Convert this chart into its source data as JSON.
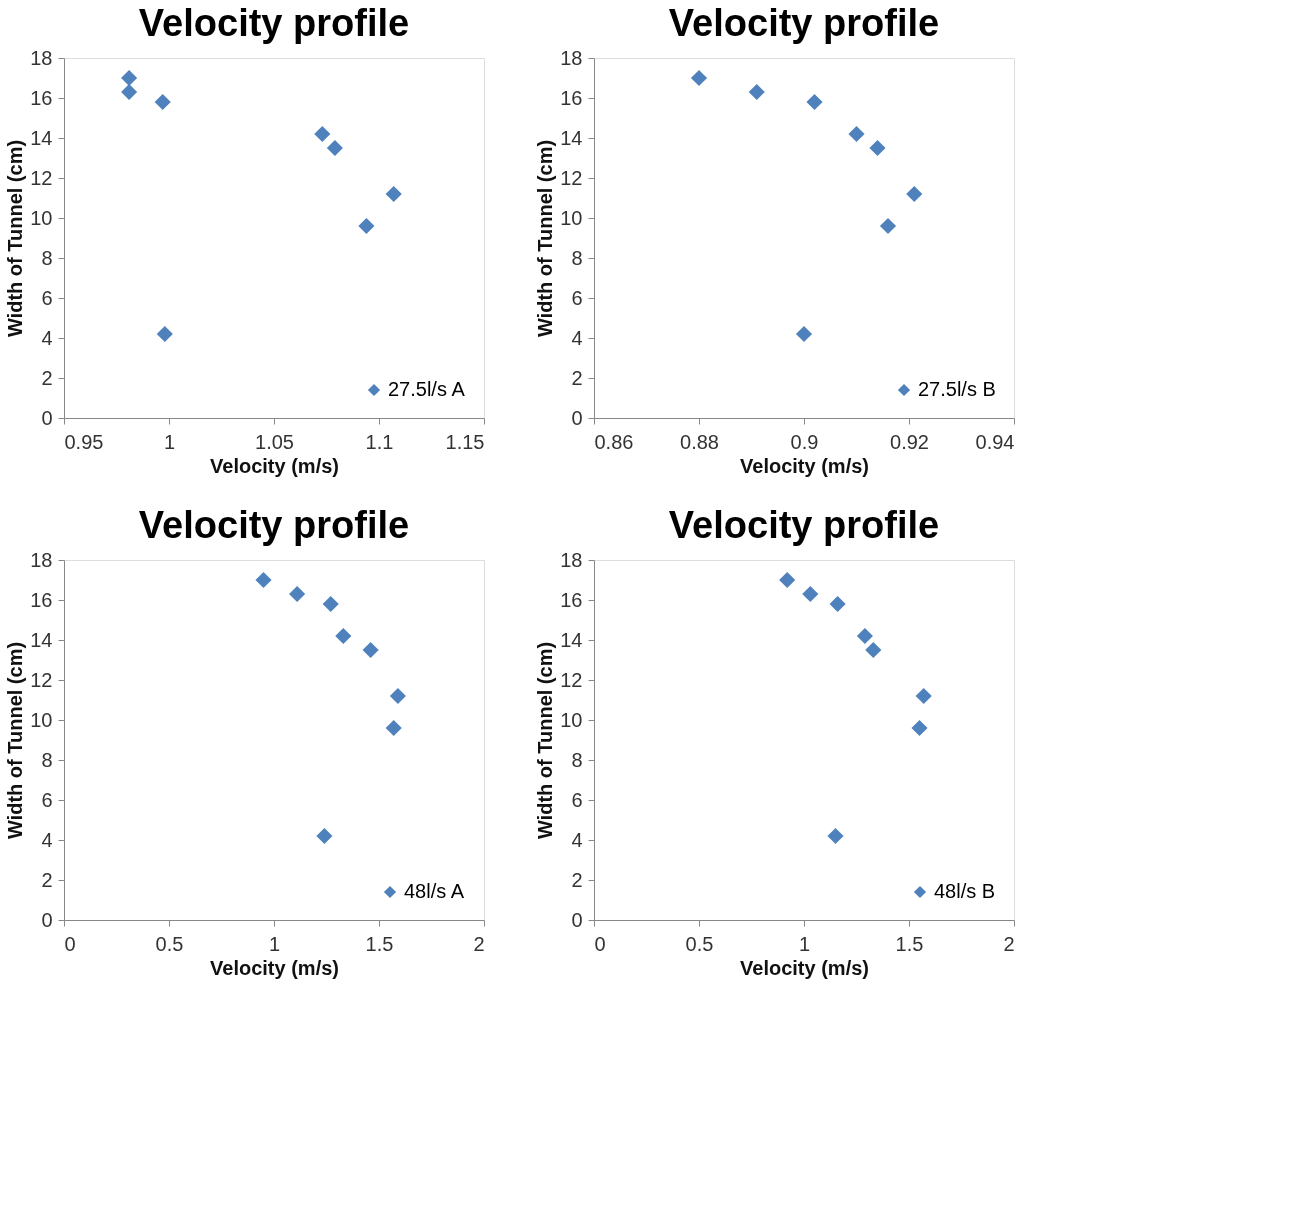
{
  "chart_data": [
    {
      "type": "scatter",
      "title": "Velocity profile",
      "xlabel": "Velocity (m/s)",
      "ylabel": "Width of Tunnel (cm)",
      "xlim": [
        0.95,
        1.15
      ],
      "xticks": [
        0.95,
        1,
        1.05,
        1.1,
        1.15
      ],
      "ylim": [
        0,
        18
      ],
      "yticks": [
        0,
        2,
        4,
        6,
        8,
        10,
        12,
        14,
        16,
        18
      ],
      "grid": false,
      "legend": "bottom right",
      "marker": "diamond",
      "series": [
        {
          "name": "27.5l/s A",
          "color": "#4f81bd",
          "x": [
            0.981,
            0.981,
            0.997,
            1.073,
            1.079,
            1.107,
            1.094,
            0.998
          ],
          "values": [
            17.0,
            16.3,
            15.8,
            14.2,
            13.5,
            11.2,
            9.6,
            4.2
          ]
        }
      ]
    },
    {
      "type": "scatter",
      "title": "Velocity profile",
      "xlabel": "Velocity (m/s)",
      "ylabel": "Width of Tunnel (cm)",
      "xlim": [
        0.86,
        0.94
      ],
      "xticks": [
        0.86,
        0.88,
        0.9,
        0.92,
        0.94
      ],
      "ylim": [
        0,
        18
      ],
      "yticks": [
        0,
        2,
        4,
        6,
        8,
        10,
        12,
        14,
        16,
        18
      ],
      "grid": false,
      "legend": "bottom right",
      "marker": "diamond",
      "series": [
        {
          "name": "27.5l/s B",
          "color": "#4f81bd",
          "x": [
            0.88,
            0.891,
            0.902,
            0.91,
            0.914,
            0.921,
            0.916,
            0.9
          ],
          "values": [
            17.0,
            16.3,
            15.8,
            14.2,
            13.5,
            11.2,
            9.6,
            4.2
          ]
        }
      ]
    },
    {
      "type": "scatter",
      "title": "Velocity profile",
      "xlabel": "Velocity (m/s)",
      "ylabel": "Width of Tunnel (cm)",
      "xlim": [
        0,
        2
      ],
      "xticks": [
        0,
        0.5,
        1,
        1.5,
        2
      ],
      "ylim": [
        0,
        18
      ],
      "yticks": [
        0,
        2,
        4,
        6,
        8,
        10,
        12,
        14,
        16,
        18
      ],
      "grid": false,
      "legend": "bottom right",
      "marker": "diamond",
      "series": [
        {
          "name": "48l/s A",
          "color": "#4f81bd",
          "x": [
            0.95,
            1.11,
            1.27,
            1.33,
            1.46,
            1.59,
            1.57,
            1.24
          ],
          "values": [
            17.0,
            16.3,
            15.8,
            14.2,
            13.5,
            11.2,
            9.6,
            4.2
          ]
        }
      ]
    },
    {
      "type": "scatter",
      "title": "Velocity profile",
      "xlabel": "Velocity (m/s)",
      "ylabel": "Width of Tunnel (cm)",
      "xlim": [
        0,
        2
      ],
      "xticks": [
        0,
        0.5,
        1,
        1.5,
        2
      ],
      "ylim": [
        0,
        18
      ],
      "yticks": [
        0,
        2,
        4,
        6,
        8,
        10,
        12,
        14,
        16,
        18
      ],
      "grid": false,
      "legend": "bottom right",
      "marker": "diamond",
      "series": [
        {
          "name": "48l/s B",
          "color": "#4f81bd",
          "x": [
            0.92,
            1.03,
            1.16,
            1.29,
            1.33,
            1.57,
            1.55,
            1.15
          ],
          "values": [
            17.0,
            16.3,
            15.8,
            14.2,
            13.5,
            11.2,
            9.6,
            4.2
          ]
        }
      ]
    }
  ]
}
